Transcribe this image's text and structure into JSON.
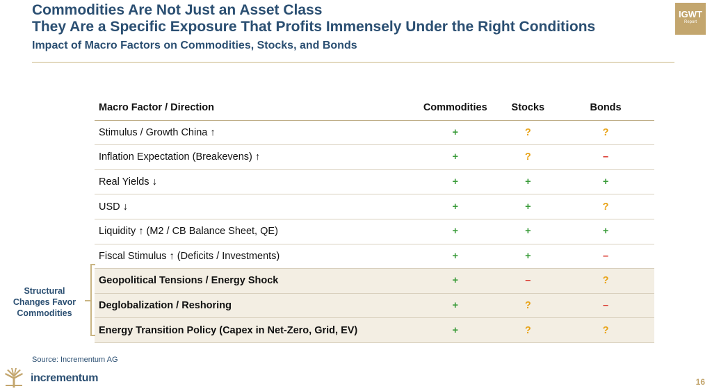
{
  "header": {
    "title_line1": "Commodities Are Not Just an Asset Class",
    "title_line2": "They Are a Specific Exposure That Profits Immensely Under the Right Conditions",
    "subtitle": "Impact of Macro Factors on Commodities, Stocks, and Bonds",
    "badge_line1": "IGWT",
    "badge_line2": "Report"
  },
  "table": {
    "headers": [
      "Macro Factor / Direction",
      "Commodities",
      "Stocks",
      "Bonds"
    ],
    "rows": [
      {
        "factor": "Stimulus / Growth China ↑",
        "commodities": "+",
        "stocks": "?",
        "bonds": "?"
      },
      {
        "factor": "Inflation Expectation (Breakevens) ↑",
        "commodities": "+",
        "stocks": "?",
        "bonds": "–"
      },
      {
        "factor": "Real Yields ↓",
        "commodities": "+",
        "stocks": "+",
        "bonds": "+"
      },
      {
        "factor": "USD ↓",
        "commodities": "+",
        "stocks": "+",
        "bonds": "?"
      },
      {
        "factor": "Liquidity ↑ (M2 / CB Balance Sheet, QE)",
        "commodities": "+",
        "stocks": "+",
        "bonds": "+"
      },
      {
        "factor": "Fiscal Stimulus ↑ (Deficits / Investments)",
        "commodities": "+",
        "stocks": "+",
        "bonds": "–"
      },
      {
        "factor": "Geopolitical Tensions / Energy Shock",
        "commodities": "+",
        "stocks": "–",
        "bonds": "?"
      },
      {
        "factor": "Deglobalization / Reshoring",
        "commodities": "+",
        "stocks": "?",
        "bonds": "–"
      },
      {
        "factor": "Energy Transition Policy (Capex in Net-Zero, Grid, EV)",
        "commodities": "+",
        "stocks": "?",
        "bonds": "?"
      }
    ]
  },
  "structural_label": "Structural Changes Favor Commodities",
  "source": "Source: Incrementum AG",
  "logo_text": "incrementum",
  "page_number": "16",
  "colors": {
    "navy": "#2b4f72",
    "gold": "#c3a66e",
    "positive": "#3a9c3a",
    "negative": "#d9352b",
    "uncertain": "#e8a317",
    "structural_row_bg": "#f3eee3"
  }
}
